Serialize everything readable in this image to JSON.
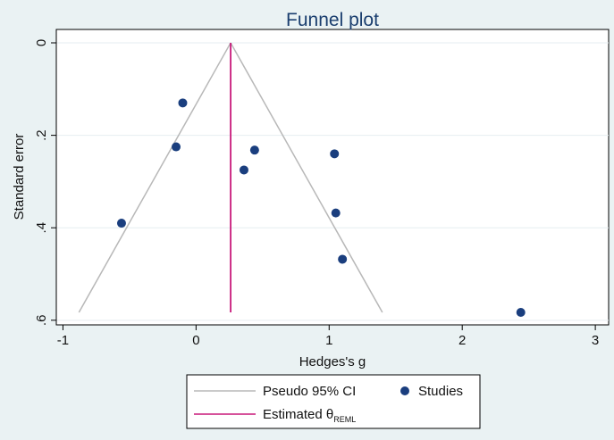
{
  "chart_data": {
    "type": "scatter",
    "title": "Funnel plot",
    "xlabel": "Hedges's g",
    "ylabel": "Standard error",
    "xlim": [
      -1.05,
      3.1
    ],
    "ylim": [
      0,
      0.61
    ],
    "y_reversed": true,
    "x_ticks": [
      -1,
      0,
      1,
      2,
      3
    ],
    "x_tick_labels": [
      "-1",
      "0",
      "1",
      "2",
      "3"
    ],
    "y_ticks": [
      0,
      0.2,
      0.4,
      0.6
    ],
    "y_tick_labels": [
      "0",
      ".2",
      ".4",
      ".6"
    ],
    "grid": "horizontal",
    "studies": [
      {
        "x": -0.1,
        "y": 0.13
      },
      {
        "x": -0.15,
        "y": 0.225
      },
      {
        "x": -0.56,
        "y": 0.39
      },
      {
        "x": 0.36,
        "y": 0.275
      },
      {
        "x": 0.44,
        "y": 0.232
      },
      {
        "x": 1.04,
        "y": 0.24
      },
      {
        "x": 1.05,
        "y": 0.368
      },
      {
        "x": 1.1,
        "y": 0.468
      },
      {
        "x": 2.44,
        "y": 0.583
      }
    ],
    "estimated_theta": 0.26,
    "pseudo_ci": {
      "apex": [
        0.26,
        0
      ],
      "left_base": [
        -0.88,
        0.583
      ],
      "right_base": [
        1.4,
        0.583
      ]
    },
    "colors": {
      "studies": "#1a3e7e",
      "estimate_line": "#c8187a",
      "ci_line": "#b8b8b8",
      "plot_bg": "#ffffff",
      "outer_bg": "#eaf2f3",
      "title": "#1a3e6e"
    },
    "legend": {
      "placement": "bottom",
      "ci_label": "Pseudo 95% CI",
      "studies_label": "Studies",
      "estimate_label": "Estimated θ",
      "estimate_subscript": "REML"
    }
  }
}
